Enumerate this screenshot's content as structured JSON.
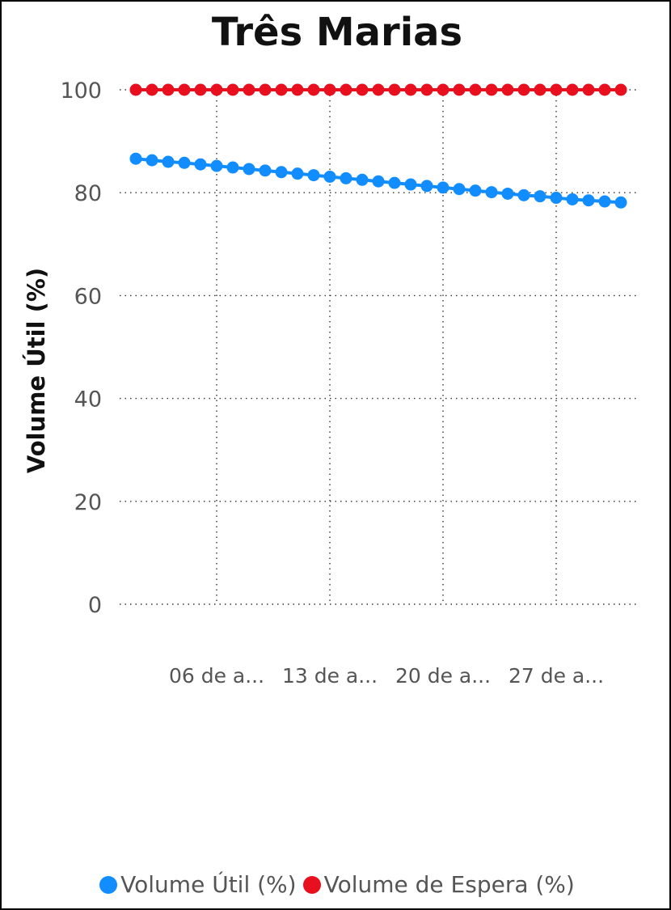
{
  "chart_data": {
    "type": "line",
    "title": "Três Marias",
    "xlabel": "",
    "ylabel": "Volume Útil (%)",
    "ylim": [
      0,
      100
    ],
    "yticks": [
      "0",
      "20",
      "40",
      "60",
      "80",
      "100"
    ],
    "xtick_labels": [
      "06 de a...",
      "13 de a...",
      "20 de a...",
      "27 de a..."
    ],
    "xtick_positions": [
      6,
      13,
      20,
      27
    ],
    "x": [
      1,
      2,
      3,
      4,
      5,
      6,
      7,
      8,
      9,
      10,
      11,
      12,
      13,
      14,
      15,
      16,
      17,
      18,
      19,
      20,
      21,
      22,
      23,
      24,
      25,
      26,
      27,
      28,
      29,
      30,
      31
    ],
    "grid": true,
    "legend_position": "bottom",
    "series": [
      {
        "name": "Volume Útil (%)",
        "color": "#118DFF",
        "values": [
          86.6,
          86.3,
          86.0,
          85.8,
          85.5,
          85.2,
          84.9,
          84.6,
          84.3,
          84.0,
          83.7,
          83.4,
          83.1,
          82.8,
          82.5,
          82.2,
          81.9,
          81.6,
          81.3,
          81.0,
          80.7,
          80.4,
          80.1,
          79.8,
          79.5,
          79.3,
          79.0,
          78.7,
          78.5,
          78.3,
          78.1
        ]
      },
      {
        "name": "Volume de Espera (%)",
        "color": "#E8101E",
        "values": [
          100,
          100,
          100,
          100,
          100,
          100,
          100,
          100,
          100,
          100,
          100,
          100,
          100,
          100,
          100,
          100,
          100,
          100,
          100,
          100,
          100,
          100,
          100,
          100,
          100,
          100,
          100,
          100,
          100,
          100,
          100
        ]
      }
    ]
  }
}
